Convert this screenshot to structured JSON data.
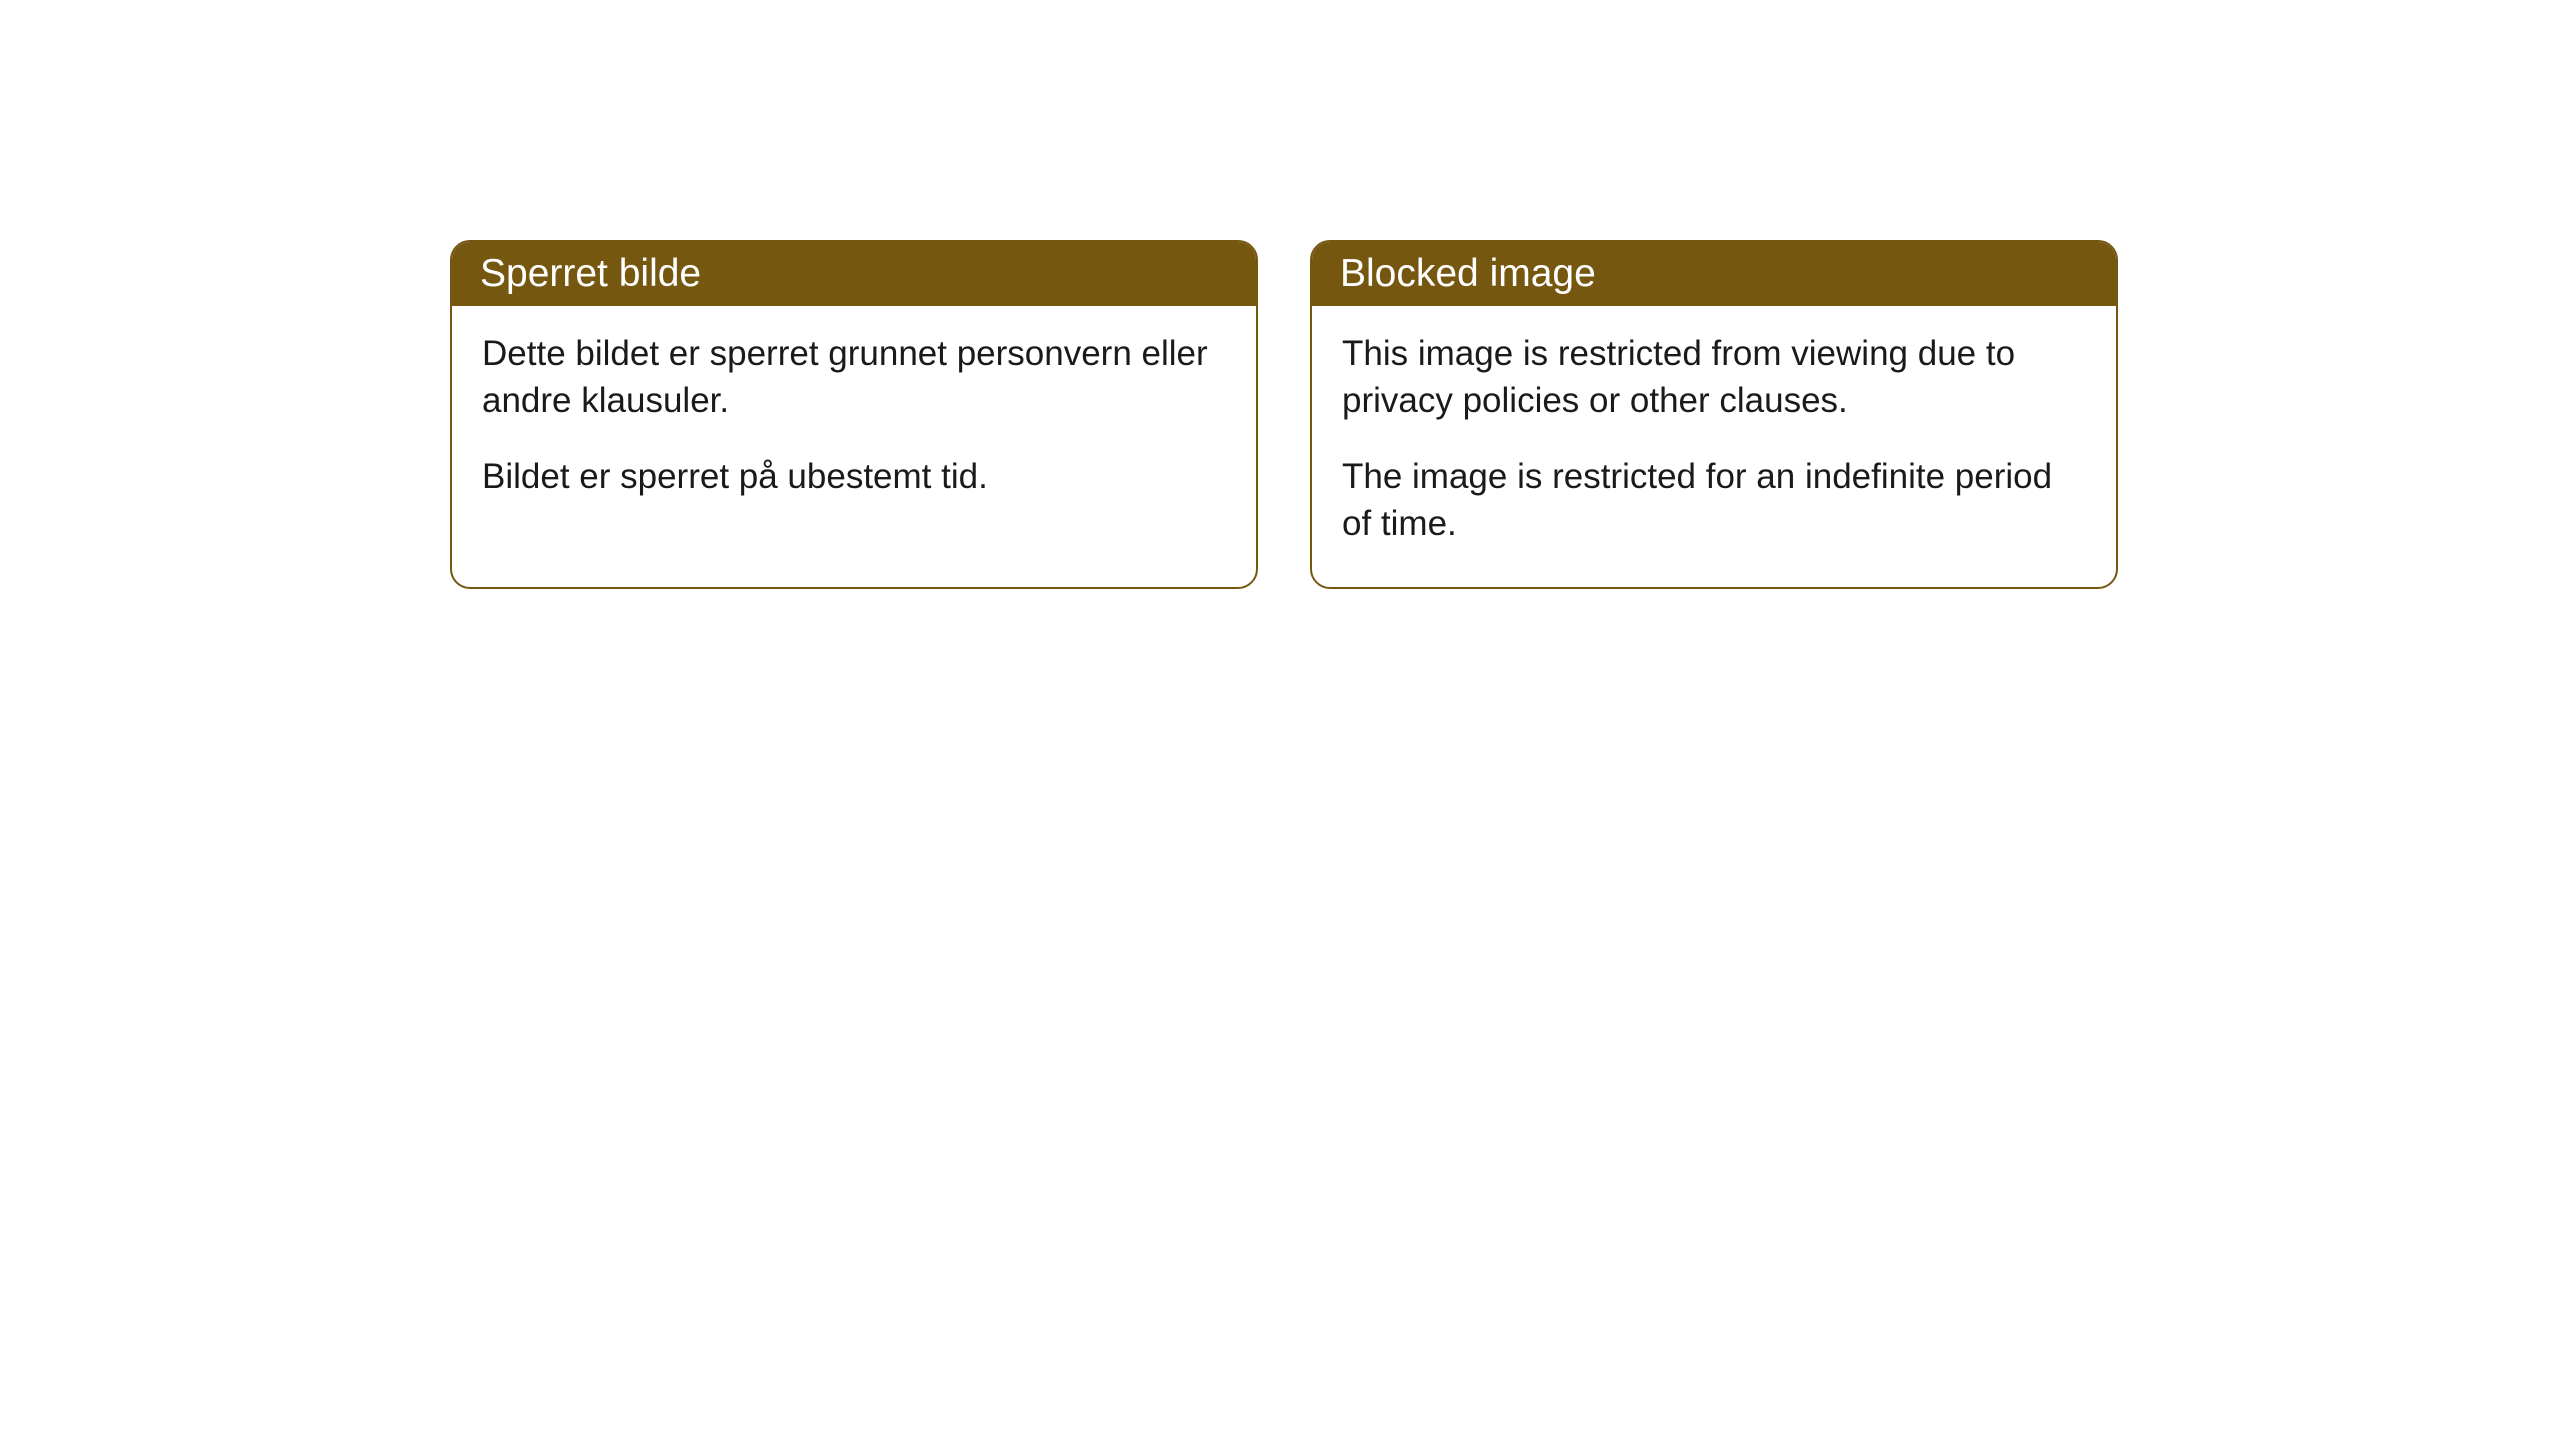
{
  "cards": [
    {
      "title": "Sperret bilde",
      "paragraph1": "Dette bildet er sperret grunnet personvern eller andre klausuler.",
      "paragraph2": "Bildet er sperret på ubestemt tid."
    },
    {
      "title": "Blocked image",
      "paragraph1": "This image is restricted from viewing due to privacy policies or other clauses.",
      "paragraph2": "The image is restricted for an indefinite period of time."
    }
  ],
  "styling": {
    "header_background": "#76570f",
    "header_text_color": "#ffffff",
    "border_color": "#76570f",
    "body_background": "#ffffff",
    "body_text_color": "#1a1a1a",
    "border_radius": 20,
    "header_fontsize": 39,
    "body_fontsize": 35
  }
}
